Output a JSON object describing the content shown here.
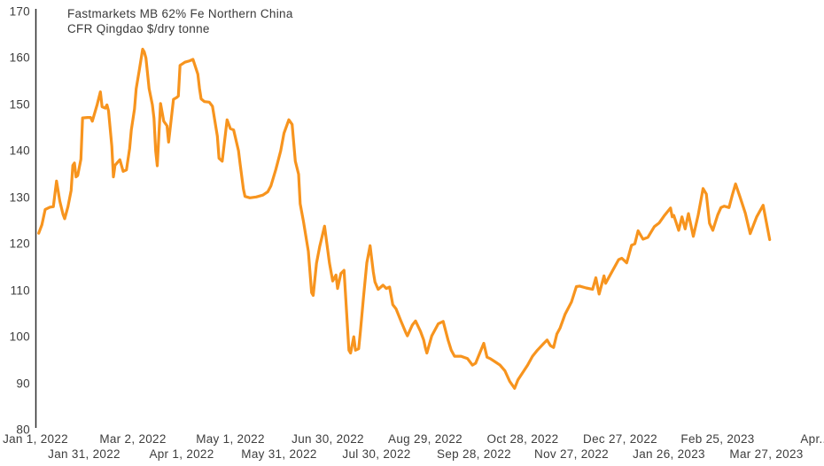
{
  "chart": {
    "title_line1": "Fastmarkets MB 62% Fe Northern China",
    "title_line2": "CFR Qingdao $/dry tonne"
  },
  "colors": {
    "line": "#F7941E",
    "axis": "#2b2b2b",
    "text": "#3d3d3d",
    "background": "#ffffff"
  },
  "chart_data": {
    "type": "line",
    "title": "Fastmarkets MB 62% Fe Northern China CFR Qingdao $/dry tonne",
    "ylabel": "$/dry tonne",
    "ylim": [
      80,
      170
    ],
    "grid": false,
    "legend_position": "none",
    "y_ticks": [
      170,
      160,
      150,
      140,
      130,
      120,
      110,
      100,
      90,
      80
    ],
    "x_axis": {
      "origin_date": "Jan 1, 2022",
      "unit": "days since Jan 1, 2022",
      "tick_interval_days": 30
    },
    "x_ticks": [
      {
        "label": "Jan 1, 2022",
        "day": 0,
        "row": 1
      },
      {
        "label": "Jan 31, 2022",
        "day": 30,
        "row": 2
      },
      {
        "label": "Mar 2, 2022",
        "day": 60,
        "row": 1
      },
      {
        "label": "Apr 1, 2022",
        "day": 90,
        "row": 2
      },
      {
        "label": "May 1, 2022",
        "day": 120,
        "row": 1
      },
      {
        "label": "May 31, 2022",
        "day": 150,
        "row": 2
      },
      {
        "label": "Jun 30, 2022",
        "day": 180,
        "row": 1
      },
      {
        "label": "Jul 30, 2022",
        "day": 210,
        "row": 2
      },
      {
        "label": "Aug 29, 2022",
        "day": 240,
        "row": 1
      },
      {
        "label": "Sep 28, 2022",
        "day": 270,
        "row": 2
      },
      {
        "label": "Oct 28, 2022",
        "day": 300,
        "row": 1
      },
      {
        "label": "Nov 27, 2022",
        "day": 330,
        "row": 2
      },
      {
        "label": "Dec 27, 2022",
        "day": 360,
        "row": 1
      },
      {
        "label": "Jan 26, 2023",
        "day": 390,
        "row": 2
      },
      {
        "label": "Feb 25, 2023",
        "day": 420,
        "row": 1
      },
      {
        "label": "Mar 27, 2023",
        "day": 450,
        "row": 2
      },
      {
        "label": "Apr...",
        "day": 480,
        "row": 1
      }
    ],
    "series": [
      {
        "name": "Fastmarkets MB 62% Fe Northern China CFR Qingdao $/dry tonne",
        "color": "#F7941E",
        "points": [
          [
            2,
            122.3
          ],
          [
            4,
            124.1
          ],
          [
            6,
            127.4
          ],
          [
            9,
            127.9
          ],
          [
            11,
            128.0
          ],
          [
            13,
            133.5
          ],
          [
            15,
            129.2
          ],
          [
            17,
            126.3
          ],
          [
            18,
            125.4
          ],
          [
            20,
            128.0
          ],
          [
            22,
            131.5
          ],
          [
            23,
            136.9
          ],
          [
            24,
            137.4
          ],
          [
            25,
            134.4
          ],
          [
            26,
            134.7
          ],
          [
            28,
            138.2
          ],
          [
            29,
            147.1
          ],
          [
            32,
            147.2
          ],
          [
            34,
            147.2
          ],
          [
            35,
            146.4
          ],
          [
            38,
            150.0
          ],
          [
            40,
            152.7
          ],
          [
            41,
            149.5
          ],
          [
            43,
            149.2
          ],
          [
            44,
            149.9
          ],
          [
            45,
            148.6
          ],
          [
            47,
            141.0
          ],
          [
            48,
            134.4
          ],
          [
            49,
            136.9
          ],
          [
            52,
            138.1
          ],
          [
            54,
            135.6
          ],
          [
            56,
            135.9
          ],
          [
            58,
            140.5
          ],
          [
            59,
            144.5
          ],
          [
            61,
            149.0
          ],
          [
            62,
            153.4
          ],
          [
            64,
            157.5
          ],
          [
            66,
            161.9
          ],
          [
            67,
            161.3
          ],
          [
            68,
            160.0
          ],
          [
            70,
            153.4
          ],
          [
            72,
            149.9
          ],
          [
            73,
            147.0
          ],
          [
            74,
            140.0
          ],
          [
            75,
            136.8
          ],
          [
            77,
            150.2
          ],
          [
            79,
            146.4
          ],
          [
            81,
            145.4
          ],
          [
            82,
            141.9
          ],
          [
            85,
            151.1
          ],
          [
            87,
            151.5
          ],
          [
            88,
            151.8
          ],
          [
            89,
            158.4
          ],
          [
            92,
            159.1
          ],
          [
            95,
            159.4
          ],
          [
            97,
            159.7
          ],
          [
            100,
            156.5
          ],
          [
            101,
            153.4
          ],
          [
            102,
            151.2
          ],
          [
            104,
            150.6
          ],
          [
            107,
            150.5
          ],
          [
            109,
            149.6
          ],
          [
            112,
            143.2
          ],
          [
            113,
            138.4
          ],
          [
            115,
            137.8
          ],
          [
            118,
            146.7
          ],
          [
            120,
            144.8
          ],
          [
            122,
            144.5
          ],
          [
            125,
            140.0
          ],
          [
            126,
            137.2
          ],
          [
            128,
            131.8
          ],
          [
            129,
            130.2
          ],
          [
            132,
            129.9
          ],
          [
            136,
            130.1
          ],
          [
            140,
            130.5
          ],
          [
            143,
            131.2
          ],
          [
            145,
            132.5
          ],
          [
            148,
            136.0
          ],
          [
            151,
            140.0
          ],
          [
            153,
            143.8
          ],
          [
            156,
            146.7
          ],
          [
            158,
            145.7
          ],
          [
            160,
            137.8
          ],
          [
            162,
            135.0
          ],
          [
            163,
            128.6
          ],
          [
            165,
            124.8
          ],
          [
            168,
            118.4
          ],
          [
            170,
            109.5
          ],
          [
            171,
            108.9
          ],
          [
            173,
            115.8
          ],
          [
            175,
            119.4
          ],
          [
            178,
            123.8
          ],
          [
            181,
            115.9
          ],
          [
            183,
            112.0
          ],
          [
            185,
            113.3
          ],
          [
            186,
            110.4
          ],
          [
            188,
            113.6
          ],
          [
            190,
            114.3
          ],
          [
            193,
            97.1
          ],
          [
            194,
            96.5
          ],
          [
            196,
            100.0
          ],
          [
            197,
            97.1
          ],
          [
            199,
            97.4
          ],
          [
            200,
            101.0
          ],
          [
            202,
            108.6
          ],
          [
            204,
            115.9
          ],
          [
            206,
            119.6
          ],
          [
            208,
            114.0
          ],
          [
            209,
            111.8
          ],
          [
            211,
            110.2
          ],
          [
            214,
            111.1
          ],
          [
            216,
            110.4
          ],
          [
            218,
            110.7
          ],
          [
            220,
            106.9
          ],
          [
            222,
            106.0
          ],
          [
            225,
            103.4
          ],
          [
            228,
            100.9
          ],
          [
            229,
            100.2
          ],
          [
            232,
            102.5
          ],
          [
            234,
            103.4
          ],
          [
            237,
            101.2
          ],
          [
            239,
            99.3
          ],
          [
            240,
            97.7
          ],
          [
            241,
            96.5
          ],
          [
            244,
            100.2
          ],
          [
            248,
            102.8
          ],
          [
            251,
            103.3
          ],
          [
            254,
            99.3
          ],
          [
            256,
            97.1
          ],
          [
            258,
            95.8
          ],
          [
            262,
            95.8
          ],
          [
            266,
            95.3
          ],
          [
            269,
            93.9
          ],
          [
            271,
            94.3
          ],
          [
            276,
            98.6
          ],
          [
            278,
            95.6
          ],
          [
            280,
            95.3
          ],
          [
            283,
            94.6
          ],
          [
            286,
            93.9
          ],
          [
            289,
            92.7
          ],
          [
            292,
            90.4
          ],
          [
            295,
            88.9
          ],
          [
            297,
            90.7
          ],
          [
            300,
            92.3
          ],
          [
            303,
            93.9
          ],
          [
            306,
            95.8
          ],
          [
            309,
            97.1
          ],
          [
            313,
            98.6
          ],
          [
            315,
            99.3
          ],
          [
            317,
            98.1
          ],
          [
            319,
            97.7
          ],
          [
            321,
            100.6
          ],
          [
            323,
            101.9
          ],
          [
            326,
            104.8
          ],
          [
            330,
            107.5
          ],
          [
            333,
            110.8
          ],
          [
            335,
            110.9
          ],
          [
            339,
            110.5
          ],
          [
            343,
            110.2
          ],
          [
            345,
            112.7
          ],
          [
            347,
            109.2
          ],
          [
            350,
            113.1
          ],
          [
            351,
            111.5
          ],
          [
            354,
            113.4
          ],
          [
            359,
            116.6
          ],
          [
            361,
            116.9
          ],
          [
            364,
            115.9
          ],
          [
            367,
            119.7
          ],
          [
            369,
            120.0
          ],
          [
            371,
            122.8
          ],
          [
            374,
            121.0
          ],
          [
            377,
            121.4
          ],
          [
            381,
            123.7
          ],
          [
            384,
            124.5
          ],
          [
            387,
            126.0
          ],
          [
            391,
            127.7
          ],
          [
            392,
            125.8
          ],
          [
            393,
            126.1
          ],
          [
            396,
            122.9
          ],
          [
            398,
            125.8
          ],
          [
            400,
            123.2
          ],
          [
            402,
            126.5
          ],
          [
            405,
            121.6
          ],
          [
            408,
            126.2
          ],
          [
            411,
            131.9
          ],
          [
            413,
            130.7
          ],
          [
            415,
            124.4
          ],
          [
            417,
            122.9
          ],
          [
            420,
            126.2
          ],
          [
            422,
            127.8
          ],
          [
            424,
            128.1
          ],
          [
            427,
            127.8
          ],
          [
            429,
            130.5
          ],
          [
            431,
            132.9
          ],
          [
            434,
            129.8
          ],
          [
            437,
            126.6
          ],
          [
            440,
            122.2
          ],
          [
            444,
            125.8
          ],
          [
            448,
            128.3
          ],
          [
            452,
            120.9
          ]
        ]
      }
    ]
  }
}
